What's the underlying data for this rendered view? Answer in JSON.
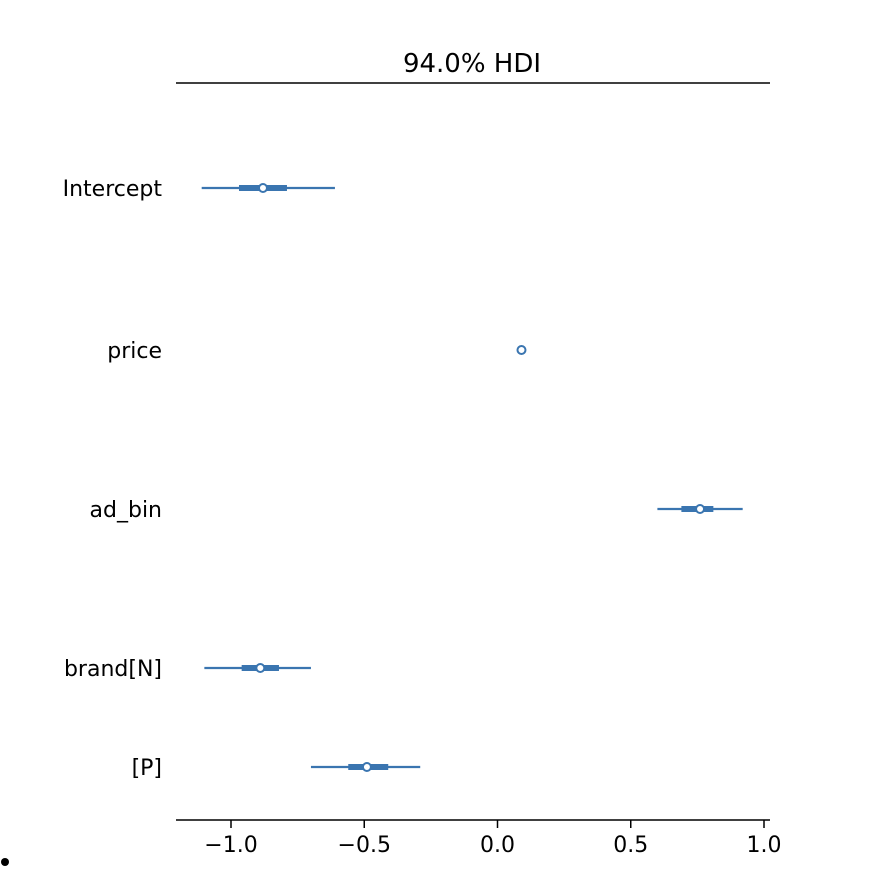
{
  "chart_data": {
    "type": "forest",
    "title": "94.0% HDI",
    "xlim": [
      -1.2,
      1.02
    ],
    "x_ticks": [
      -1.0,
      -0.5,
      0.0,
      0.5,
      1.0
    ],
    "x_tick_labels": [
      "−1.0",
      "−0.5",
      "0.0",
      "0.5",
      "1.0"
    ],
    "grid": false,
    "series_color": "#3a75b0",
    "rows": [
      {
        "label": "Intercept",
        "median": -0.88,
        "hdi_low": -1.11,
        "hdi_high": -0.61,
        "iqr_low": -0.97,
        "iqr_high": -0.79
      },
      {
        "label": "price",
        "median": 0.09,
        "hdi_low": 0.09,
        "hdi_high": 0.09,
        "iqr_low": 0.09,
        "iqr_high": 0.09
      },
      {
        "label": "ad_bin",
        "median": 0.76,
        "hdi_low": 0.6,
        "hdi_high": 0.92,
        "iqr_low": 0.69,
        "iqr_high": 0.81
      },
      {
        "label": "brand[N]",
        "median": -0.89,
        "hdi_low": -1.1,
        "hdi_high": -0.7,
        "iqr_low": -0.96,
        "iqr_high": -0.82
      },
      {
        "label": "[P]",
        "median": -0.49,
        "hdi_low": -0.7,
        "hdi_high": -0.29,
        "iqr_low": -0.56,
        "iqr_high": -0.41
      }
    ]
  }
}
